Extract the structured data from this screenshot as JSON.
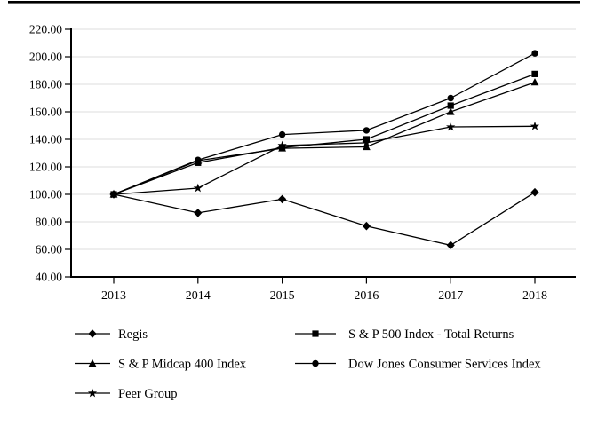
{
  "page": {
    "background_color": "#ffffff",
    "top_rule_color": "#000000"
  },
  "chart_data": {
    "type": "line",
    "x": [
      2013,
      2014,
      2015,
      2016,
      2017,
      2018
    ],
    "xtick_labels": [
      "2013",
      "2014",
      "2015",
      "2016",
      "2017",
      "2018"
    ],
    "ylim": [
      40,
      220
    ],
    "ytick_step": 20,
    "ytick_labels": [
      "40.00",
      "60.00",
      "80.00",
      "100.00",
      "120.00",
      "140.00",
      "160.00",
      "180.00",
      "200.00",
      "220.00"
    ],
    "grid": "horizontal-light",
    "gridline_color": "#dcdcdc",
    "axis_color": "#000000",
    "line_color": "#000000",
    "marker_color": "#000000",
    "series": [
      {
        "name": "Regis",
        "marker": "diamond",
        "values": [
          100.0,
          86.5,
          96.5,
          77.0,
          63.0,
          101.5
        ]
      },
      {
        "name": "S & P 500 Index - Total Returns",
        "marker": "square",
        "values": [
          100.0,
          123.0,
          134.0,
          140.0,
          164.5,
          187.5
        ]
      },
      {
        "name": "S & P Midcap 400 Index",
        "marker": "triangle",
        "values": [
          100.0,
          124.5,
          133.5,
          134.5,
          160.0,
          181.5
        ]
      },
      {
        "name": "Dow Jones Consumer Services Index",
        "marker": "circle",
        "values": [
          100.0,
          125.0,
          143.5,
          146.5,
          170.0,
          202.5
        ]
      },
      {
        "name": "Peer Group",
        "marker": "star",
        "values": [
          100.0,
          104.5,
          135.5,
          137.5,
          149.0,
          149.5
        ]
      }
    ],
    "legend": {
      "position": "bottom",
      "columns": [
        [
          0,
          2,
          4
        ],
        [
          1,
          3
        ]
      ]
    }
  }
}
